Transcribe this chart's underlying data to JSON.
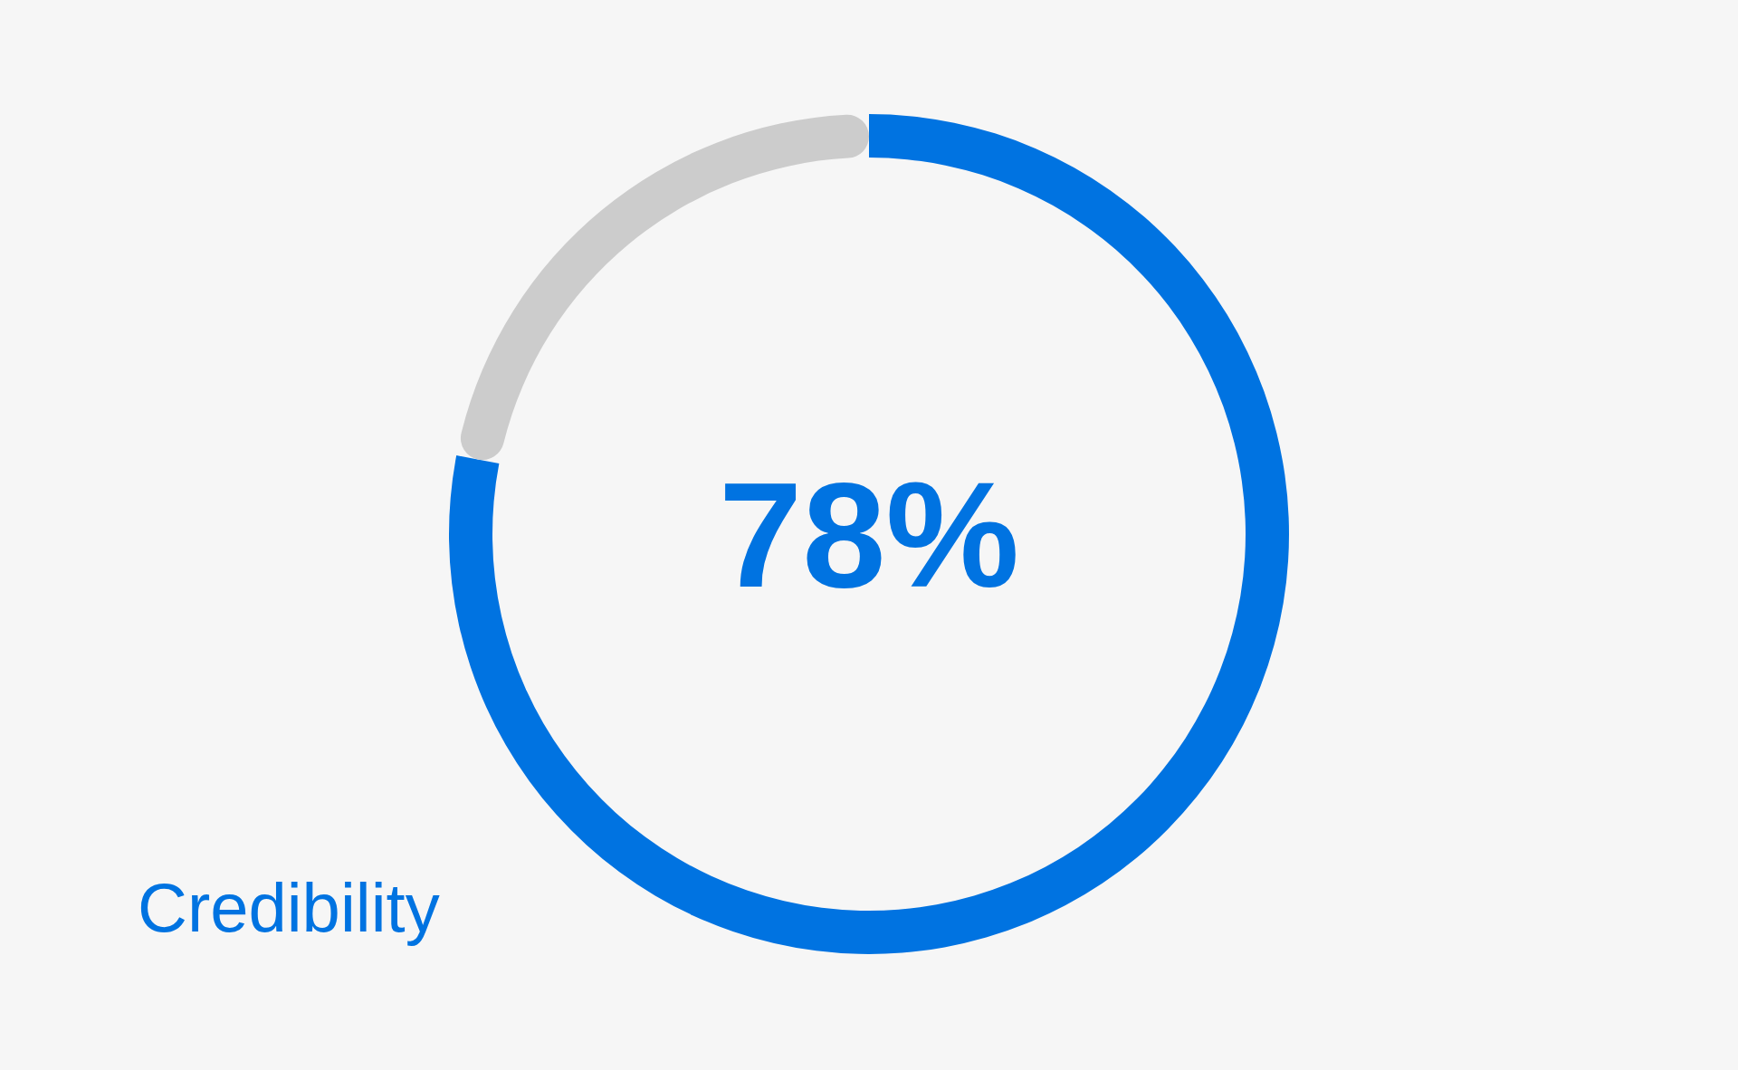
{
  "chart_data": {
    "type": "donut",
    "title": "Credibility",
    "categories": [
      null,
      null
    ],
    "values": [
      78,
      22
    ],
    "colors": [
      "#0073e1",
      "#cccccc"
    ],
    "value_labels": [
      "78%",
      null
    ]
  }
}
